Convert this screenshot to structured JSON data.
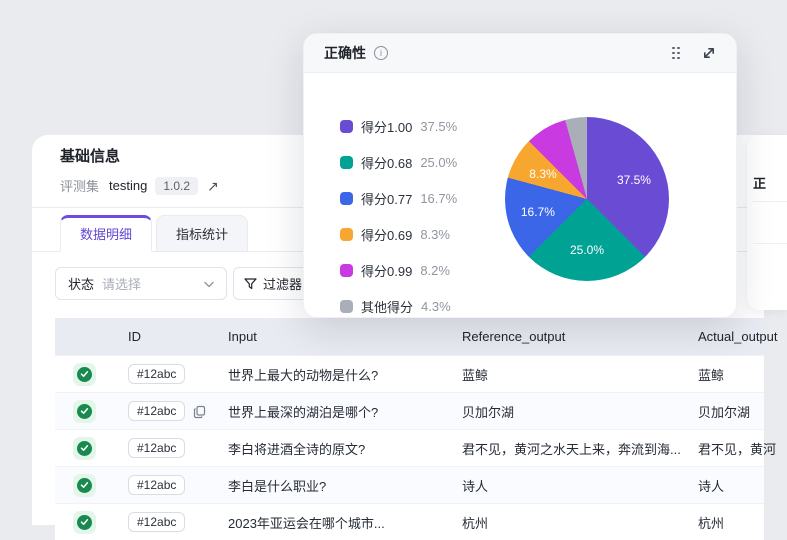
{
  "colors": {
    "accent_purple": "#6D4AE0",
    "status_green": "#188A4F",
    "page_bg": "#EAEBEF",
    "table_header_bg": "#E9EBF2"
  },
  "panel": {
    "title": "基础信息",
    "dataset": {
      "label": "评测集",
      "name": "testing",
      "version": "1.0.2"
    },
    "tabs": [
      {
        "label": "数据明细"
      },
      {
        "label": "指标统计"
      }
    ],
    "filter": {
      "status_label": "状态",
      "status_placeholder": "请选择",
      "filter_button_label": "过滤器"
    },
    "table": {
      "columns": [
        "",
        "ID",
        "Input",
        "Reference_output",
        "Actual_output"
      ],
      "rows": [
        {
          "status": "pass",
          "id": "#12abc",
          "copy": false,
          "input": "世界上最大的动物是什么?",
          "reference_output": "蓝鲸",
          "actual_output": "蓝鲸"
        },
        {
          "status": "pass",
          "id": "#12abc",
          "copy": true,
          "input": "世界上最深的湖泊是哪个?",
          "reference_output": "贝加尔湖",
          "actual_output": "贝加尔湖"
        },
        {
          "status": "pass",
          "id": "#12abc",
          "copy": false,
          "input": "李白将进酒全诗的原文?",
          "reference_output": "君不见，黄河之水天上来，奔流到海...",
          "actual_output": "君不见，黄河"
        },
        {
          "status": "pass",
          "id": "#12abc",
          "copy": false,
          "input": "李白是什么职业?",
          "reference_output": "诗人",
          "actual_output": "诗人"
        },
        {
          "status": "pass",
          "id": "#12abc",
          "copy": false,
          "input": "2023年亚运会在哪个城市...",
          "reference_output": "杭州",
          "actual_output": "杭州"
        }
      ]
    }
  },
  "modal": {
    "title": "正确性",
    "chart_data": {
      "type": "pie",
      "title": "正确性",
      "legend_position": "left",
      "slices": [
        {
          "label": "得分1.00",
          "percent": 37.5,
          "color": "#6A4BD4",
          "show_on_slice": true
        },
        {
          "label": "得分0.68",
          "percent": 25.0,
          "color": "#00A294",
          "show_on_slice": true
        },
        {
          "label": "得分0.77",
          "percent": 16.7,
          "color": "#3B66E8",
          "show_on_slice": true
        },
        {
          "label": "得分0.69",
          "percent": 8.3,
          "color": "#F7A72F",
          "show_on_slice": true
        },
        {
          "label": "得分0.99",
          "percent": 8.2,
          "color": "#C93BE0",
          "show_on_slice": false
        },
        {
          "label": "其他得分",
          "percent": 4.3,
          "color": "#A9AEB8",
          "show_on_slice": false
        }
      ]
    }
  },
  "right_card": {
    "visible_text": "正"
  }
}
